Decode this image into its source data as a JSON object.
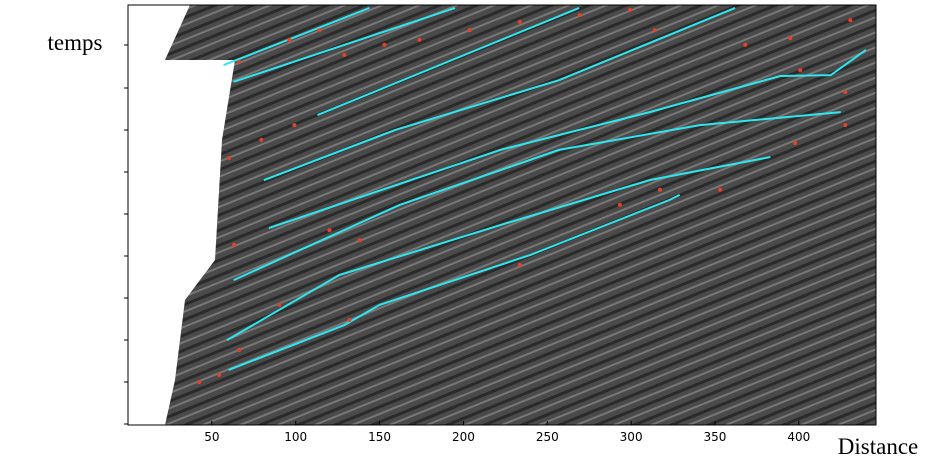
{
  "chart_data": {
    "type": "trace-plot",
    "ylabel": "temps",
    "xlabel": "Distance",
    "xlim": [
      0,
      446
    ],
    "xticks": [
      50,
      100,
      150,
      200,
      250,
      300,
      350,
      400
    ],
    "ylim": [
      0,
      100
    ],
    "lines": [
      {
        "color": "#2ee6f0",
        "x": [
          57,
          144
        ],
        "y": [
          85.7,
          99.3
        ]
      },
      {
        "color": "#2ee6f0",
        "x": [
          63,
          195
        ],
        "y": [
          81.7,
          99.3
        ]
      },
      {
        "color": "#2ee6f0",
        "x": [
          113,
          269
        ],
        "y": [
          73.8,
          99.3
        ]
      },
      {
        "color": "#2ee6f0",
        "x": [
          81,
          159,
          257,
          362
        ],
        "y": [
          58.3,
          70.2,
          82.1,
          99.3
        ]
      },
      {
        "color": "#2ee6f0",
        "x": [
          84,
          222,
          311,
          389,
          419,
          440
        ],
        "y": [
          46.9,
          65.5,
          74.5,
          83.1,
          83.3,
          89.3
        ]
      },
      {
        "color": "#2ee6f0",
        "x": [
          63,
          162,
          257,
          341,
          425
        ],
        "y": [
          34.5,
          52.4,
          65.5,
          71.4,
          74.5
        ]
      },
      {
        "color": "#2ee6f0",
        "x": [
          59,
          126,
          222,
          311,
          383
        ],
        "y": [
          20.2,
          35.7,
          47.6,
          58.3,
          63.8
        ]
      },
      {
        "color": "#2ee6f0",
        "x": [
          60,
          129,
          150,
          240,
          323,
          329
        ],
        "y": [
          13.1,
          23.8,
          28.6,
          40.5,
          53.6,
          54.8
        ]
      }
    ],
    "points": {
      "color": "#e8402a",
      "x": [
        66.3,
        96.2,
        114.1,
        129.0,
        152.9,
        173.8,
        203.7,
        233.6,
        269.4,
        299.3,
        314.2,
        368.0,
        394.9,
        430.7,
        400.8,
        427.7,
        397.8,
        427.7,
        60.3,
        79.5,
        99.2,
        63.3,
        120.1,
        138.0,
        42.4,
        54.4,
        66.3,
        90.2,
        132.0,
        233.6,
        293.3,
        317.2,
        353.0
      ],
      "y": [
        86.4,
        91.7,
        94.0,
        88.1,
        90.5,
        91.7,
        94.0,
        96.0,
        97.6,
        98.8,
        94.0,
        90.5,
        92.1,
        96.4,
        84.5,
        79.3,
        67.1,
        71.4,
        63.6,
        67.9,
        71.4,
        42.9,
        46.4,
        44.0,
        10.2,
        11.9,
        17.9,
        28.6,
        25.0,
        38.1,
        52.4,
        56.0,
        56.0
      ]
    }
  }
}
